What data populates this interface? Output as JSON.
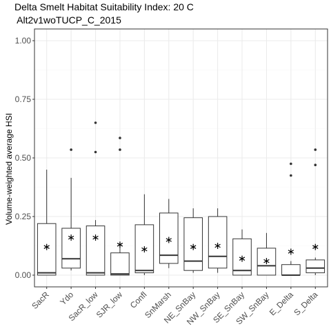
{
  "chart_data": {
    "type": "box",
    "title": "Delta Smelt Habitat Suitability Index: 20 C",
    "subtitle": " Alt2v1woTUCP_C_2015",
    "xlabel": "",
    "ylabel": "Volume-weighted average HSI",
    "ylim": [
      -0.05,
      1.05
    ],
    "yticks": [
      0.0,
      0.25,
      0.5,
      0.75,
      1.0
    ],
    "ytick_labels": [
      "0.00",
      "0.25",
      "0.50",
      "0.75",
      "1.00"
    ],
    "grid": true,
    "categories": [
      "SacR",
      "Ydo",
      "SacR_low",
      "SJR_low",
      "Confl",
      "SnMarsh",
      "NE_SnBay",
      "NW_SnBay",
      "SE_SnBay",
      "SW_SnBay",
      "E_Delta",
      "S_Delta"
    ],
    "boxes": [
      {
        "min": 0.0,
        "q1": 0.0,
        "median": 0.01,
        "q3": 0.22,
        "max": 0.45,
        "mean": 0.12,
        "outliers": []
      },
      {
        "min": 0.02,
        "q1": 0.03,
        "median": 0.07,
        "q3": 0.2,
        "max": 0.415,
        "mean": 0.16,
        "outliers": [
          0.535
        ]
      },
      {
        "min": 0.0,
        "q1": 0.0,
        "median": 0.01,
        "q3": 0.21,
        "max": 0.235,
        "mean": 0.16,
        "outliers": [
          0.525,
          0.65
        ]
      },
      {
        "min": 0.0,
        "q1": 0.0,
        "median": 0.005,
        "q3": 0.095,
        "max": 0.135,
        "mean": 0.13,
        "outliers": [
          0.535,
          0.585
        ]
      },
      {
        "min": 0.0,
        "q1": 0.01,
        "median": 0.02,
        "q3": 0.215,
        "max": 0.345,
        "mean": 0.11,
        "outliers": []
      },
      {
        "min": 0.03,
        "q1": 0.05,
        "median": 0.085,
        "q3": 0.265,
        "max": 0.325,
        "mean": 0.15,
        "outliers": []
      },
      {
        "min": 0.01,
        "q1": 0.02,
        "median": 0.06,
        "q3": 0.245,
        "max": 0.285,
        "mean": 0.12,
        "outliers": []
      },
      {
        "min": 0.01,
        "q1": 0.03,
        "median": 0.08,
        "q3": 0.25,
        "max": 0.285,
        "mean": 0.125,
        "outliers": []
      },
      {
        "min": 0.0,
        "q1": 0.0,
        "median": 0.02,
        "q3": 0.155,
        "max": 0.195,
        "mean": 0.07,
        "outliers": []
      },
      {
        "min": 0.0,
        "q1": 0.0,
        "median": 0.04,
        "q3": 0.115,
        "max": 0.18,
        "mean": 0.06,
        "outliers": []
      },
      {
        "min": 0.0,
        "q1": 0.0,
        "median": 0.0,
        "q3": 0.045,
        "max": 0.06,
        "mean": 0.1,
        "outliers": [
          0.425,
          0.475
        ]
      },
      {
        "min": 0.0,
        "q1": 0.01,
        "median": 0.03,
        "q3": 0.065,
        "max": 0.075,
        "mean": 0.12,
        "outliers": [
          0.47,
          0.535
        ]
      }
    ],
    "colors": {
      "panel_background": "#ffffff",
      "grid_major": "#ebebeb",
      "grid_minor": "#f7f7f7",
      "panel_border": "#333333",
      "box": "#333333",
      "mean_marker": "#000000",
      "tick_text": "#4d4d4d"
    }
  }
}
